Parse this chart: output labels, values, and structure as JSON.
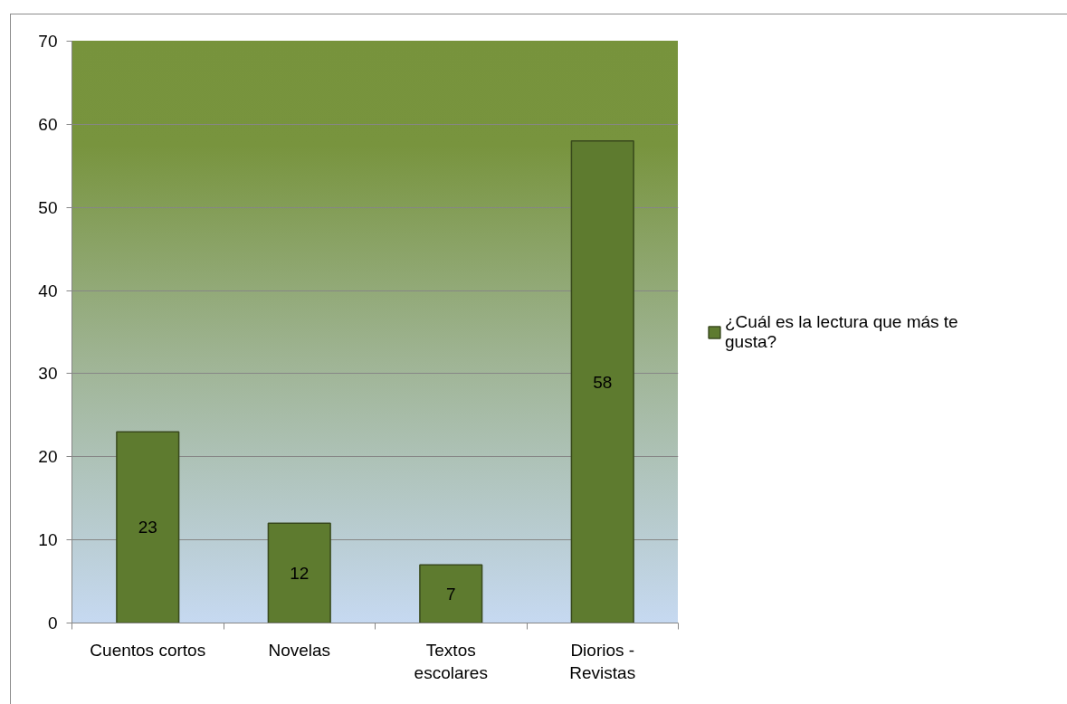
{
  "chart_data": {
    "type": "bar",
    "categories": [
      "Cuentos cortos",
      "Novelas",
      "Textos escolares",
      "Diorios - Revistas"
    ],
    "series": [
      {
        "name": "¿Cuál es la lectura que más te gusta?",
        "color": "#5e7b2f",
        "values": [
          23,
          12,
          7,
          58
        ]
      }
    ],
    "ylim": [
      0,
      70
    ],
    "yticks": [
      0,
      10,
      20,
      30,
      40,
      50,
      60,
      70
    ],
    "grid": "y",
    "legend": "right",
    "data_labels": true
  }
}
